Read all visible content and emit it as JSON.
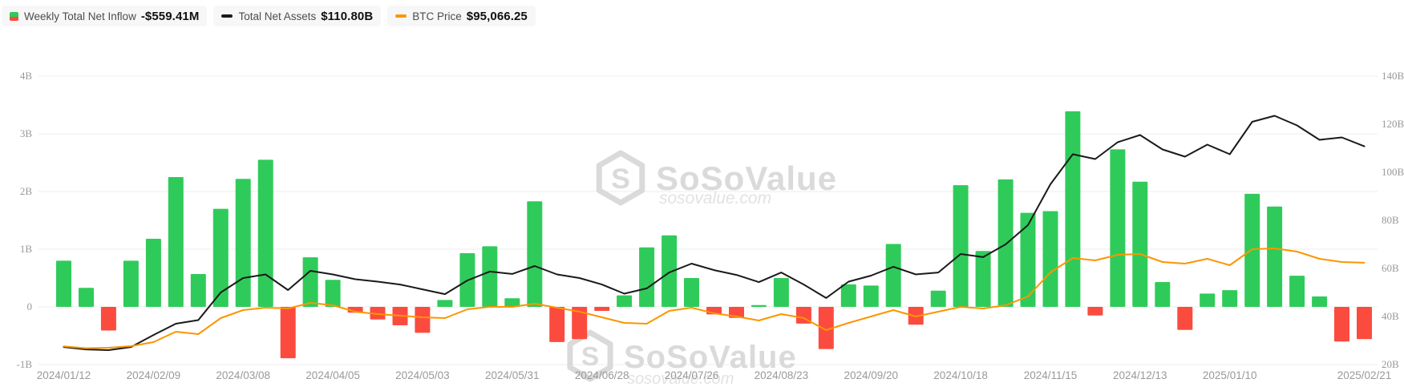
{
  "legend": {
    "items": [
      {
        "label": "Weekly Total Net Inflow",
        "value": "-$559.41M",
        "icon": "split-square",
        "icon_colors": [
          "#2FCB5A",
          "#FB4B3F"
        ]
      },
      {
        "label": "Total Net Assets",
        "value": "$110.80B",
        "icon": "dash",
        "icon_colors": [
          "#1A1A1A"
        ]
      },
      {
        "label": "BTC Price",
        "value": "$95,066.25",
        "icon": "dash",
        "icon_colors": [
          "#FB9600"
        ]
      }
    ]
  },
  "watermark": {
    "brand": "SoSoValue",
    "domain": "sosovalue.com",
    "color": "#DADADA"
  },
  "colors": {
    "inflow_positive": "#2FCB5A",
    "inflow_negative": "#FB4B3F",
    "total_net_assets_line": "#1A1A1A",
    "btc_price_line": "#FB9600",
    "gridline": "#ECECEC",
    "axis_text": "#999999"
  },
  "chart_data": {
    "type": "combo",
    "title": "",
    "x": [
      "2024/01/12",
      "2024/01/19",
      "2024/01/26",
      "2024/02/02",
      "2024/02/09",
      "2024/02/16",
      "2024/02/23",
      "2024/03/01",
      "2024/03/08",
      "2024/03/15",
      "2024/03/22",
      "2024/03/29",
      "2024/04/05",
      "2024/04/12",
      "2024/04/19",
      "2024/04/26",
      "2024/05/03",
      "2024/05/10",
      "2024/05/17",
      "2024/05/24",
      "2024/05/31",
      "2024/06/07",
      "2024/06/14",
      "2024/06/21",
      "2024/06/28",
      "2024/07/05",
      "2024/07/12",
      "2024/07/19",
      "2024/07/26",
      "2024/08/02",
      "2024/08/09",
      "2024/08/16",
      "2024/08/23",
      "2024/08/30",
      "2024/09/06",
      "2024/09/13",
      "2024/09/20",
      "2024/09/27",
      "2024/10/04",
      "2024/10/11",
      "2024/10/18",
      "2024/10/25",
      "2024/11/01",
      "2024/11/08",
      "2024/11/15",
      "2024/11/22",
      "2024/11/29",
      "2024/12/06",
      "2024/12/13",
      "2024/12/20",
      "2024/12/27",
      "2025/01/03",
      "2025/01/10",
      "2025/01/17",
      "2025/01/24",
      "2025/01/31",
      "2025/02/07",
      "2025/02/14",
      "2025/02/21"
    ],
    "x_tick_indices": [
      0,
      4,
      8,
      12,
      16,
      20,
      24,
      28,
      32,
      36,
      40,
      44,
      48,
      52,
      58
    ],
    "series": [
      {
        "name": "Weekly Total Net Inflow",
        "type": "bar",
        "axis": "left",
        "unit": "B USD",
        "values": [
          0.8,
          0.33,
          -0.41,
          0.8,
          1.18,
          2.25,
          0.57,
          1.7,
          2.22,
          2.55,
          -0.89,
          0.86,
          0.47,
          -0.1,
          -0.22,
          -0.32,
          -0.45,
          0.12,
          0.93,
          1.05,
          0.15,
          1.83,
          -0.61,
          -0.56,
          -0.07,
          0.2,
          1.03,
          1.24,
          0.5,
          -0.13,
          -0.19,
          0.03,
          0.5,
          -0.29,
          -0.73,
          0.39,
          0.37,
          1.09,
          -0.31,
          0.28,
          2.11,
          0.97,
          2.21,
          1.63,
          1.66,
          3.39,
          -0.15,
          2.73,
          2.17,
          0.43,
          -0.4,
          0.23,
          0.29,
          1.96,
          1.74,
          0.54,
          0.18,
          -0.6,
          -0.56
        ]
      },
      {
        "name": "Total Net Assets",
        "type": "line",
        "axis": "right",
        "unit": "B USD",
        "values": [
          27.3,
          26.3,
          26.0,
          27.3,
          32.3,
          37.0,
          38.5,
          50.0,
          56.0,
          57.5,
          51.0,
          59.0,
          57.5,
          55.5,
          54.5,
          53.3,
          51.3,
          49.3,
          55.0,
          58.7,
          57.7,
          61.0,
          57.5,
          56.0,
          53.3,
          49.5,
          51.7,
          58.3,
          62.0,
          59.3,
          57.3,
          54.3,
          58.3,
          53.3,
          47.7,
          54.5,
          57.0,
          60.7,
          57.5,
          58.3,
          66.0,
          64.7,
          70.0,
          78.0,
          95.0,
          107.5,
          105.5,
          112.5,
          115.5,
          109.5,
          106.5,
          111.5,
          107.5,
          121.0,
          123.5,
          119.5,
          113.5,
          114.5,
          110.8
        ]
      },
      {
        "name": "BTC Price",
        "type": "line",
        "axis": "btc_hidden",
        "unit": "USD",
        "values": [
          42900,
          41700,
          42000,
          43000,
          45500,
          52000,
          50500,
          60500,
          65500,
          67000,
          66500,
          70000,
          68500,
          64500,
          63000,
          62000,
          61000,
          60500,
          66000,
          67500,
          67500,
          69500,
          67000,
          64500,
          61000,
          57500,
          57000,
          65000,
          67000,
          63500,
          61500,
          59000,
          63000,
          60500,
          53000,
          57500,
          61500,
          65500,
          61500,
          64500,
          67500,
          66500,
          68500,
          74000,
          89000,
          98000,
          96500,
          100000,
          100500,
          95500,
          94500,
          97500,
          93500,
          103500,
          104000,
          102000,
          97500,
          95500,
          95066.25
        ]
      }
    ],
    "axes": {
      "left": {
        "min": -1,
        "max": 4,
        "unit": "B USD",
        "tick_labels": [
          "4B",
          "3B",
          "2B",
          "1B",
          "0",
          "-1B"
        ]
      },
      "right": {
        "min": 20,
        "max": 140,
        "unit": "B USD",
        "tick_labels": [
          "140B",
          "120B",
          "100B",
          "80B",
          "60B",
          "40B",
          "20B"
        ]
      },
      "btc_hidden": {
        "min": 31500,
        "max": 211500,
        "visible": false
      }
    },
    "grid": true,
    "legend_position": "top-left"
  }
}
